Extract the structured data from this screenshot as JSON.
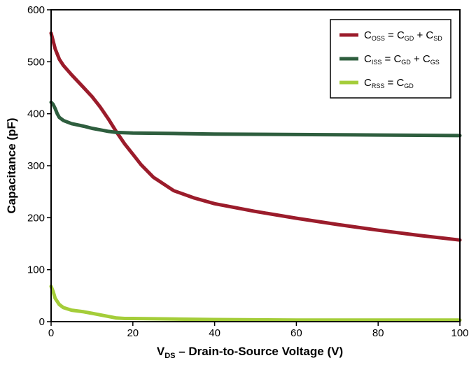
{
  "chart_data": {
    "type": "line",
    "xlabel": {
      "main": "V",
      "sub": "DS",
      "rest": " – Drain-to-Source Voltage (V)"
    },
    "ylabel": "Capacitance (pF)",
    "xlim": [
      0,
      100
    ],
    "ylim": [
      0,
      600
    ],
    "x_ticks": [
      0,
      20,
      40,
      60,
      80,
      100
    ],
    "y_ticks": [
      0,
      100,
      200,
      300,
      400,
      500,
      600
    ],
    "grid": false,
    "legend_position": "top-right",
    "series": [
      {
        "legend": [
          {
            "t": "C"
          },
          {
            "t": "OSS",
            "sub": true
          },
          {
            "t": " = C"
          },
          {
            "t": "GD",
            "sub": true
          },
          {
            "t": " + C"
          },
          {
            "t": "SD",
            "sub": true
          }
        ],
        "color": "#9b1c2b",
        "x": [
          0,
          1,
          2,
          3,
          5,
          8,
          10,
          12,
          14,
          16,
          18,
          20,
          22,
          25,
          30,
          35,
          40,
          50,
          60,
          70,
          80,
          90,
          100
        ],
        "y": [
          555,
          525,
          505,
          493,
          475,
          450,
          433,
          413,
          390,
          365,
          342,
          322,
          302,
          278,
          252,
          238,
          227,
          212,
          199,
          187,
          176,
          166,
          157
        ]
      },
      {
        "legend": [
          {
            "t": "C"
          },
          {
            "t": "ISS",
            "sub": true
          },
          {
            "t": " = C"
          },
          {
            "t": "GD",
            "sub": true
          },
          {
            "t": " + C"
          },
          {
            "t": "GS",
            "sub": true
          }
        ],
        "color": "#2e5e3e",
        "x": [
          0,
          0.5,
          1,
          1.5,
          2,
          3,
          5,
          8,
          10,
          12,
          14,
          16,
          20,
          30,
          40,
          60,
          80,
          100
        ],
        "y": [
          422,
          418,
          410,
          400,
          393,
          387,
          381,
          376,
          372,
          369,
          366,
          364,
          363,
          362,
          361,
          360,
          359,
          358
        ]
      },
      {
        "legend": [
          {
            "t": "C"
          },
          {
            "t": "RSS",
            "sub": true
          },
          {
            "t": " = C"
          },
          {
            "t": "GD",
            "sub": true
          }
        ],
        "color": "#a4cd39",
        "x": [
          0,
          0.5,
          1,
          2,
          3,
          5,
          8,
          10,
          12,
          14,
          16,
          18,
          20,
          30,
          40,
          60,
          80,
          100
        ],
        "y": [
          68,
          58,
          45,
          33,
          27,
          22,
          19,
          16,
          13,
          10,
          7,
          6,
          6,
          5,
          4,
          3,
          3,
          3
        ]
      }
    ]
  }
}
